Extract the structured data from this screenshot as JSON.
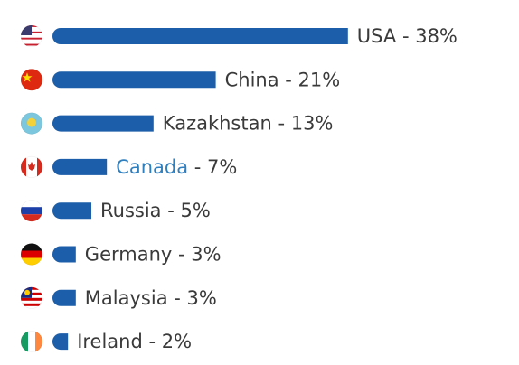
{
  "chart_data": {
    "type": "bar",
    "orientation": "horizontal",
    "categories": [
      "USA",
      "China",
      "Kazakhstan",
      "Canada",
      "Russia",
      "Germany",
      "Malaysia",
      "Ireland"
    ],
    "values": [
      38,
      21,
      13,
      7,
      5,
      3,
      3,
      2
    ],
    "value_labels": [
      "38%",
      "21%",
      "13%",
      "7%",
      "5%",
      "3%",
      "3%",
      "2%"
    ],
    "label_separator": " - ",
    "color": "#1c5ea9",
    "link_color": "#2f7fbf",
    "linked_categories": [
      "Canada"
    ]
  }
}
